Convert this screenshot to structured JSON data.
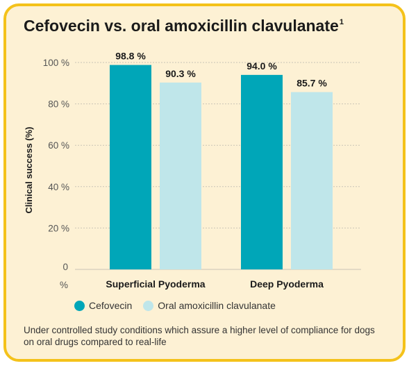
{
  "title": "Cefovecin vs. oral amoxicillin clavulanate",
  "title_superscript": "1",
  "footnote": "Under controlled study conditions which assure a higher level of compliance for dogs on oral drugs compared to real-life",
  "chart_data": {
    "type": "bar",
    "title": "Cefovecin vs. oral amoxicillin clavulanate",
    "ylabel": "Clinical success (%)",
    "xlabel": "",
    "ylim": [
      0,
      100
    ],
    "yticks": [
      "0 %",
      "20 %",
      "40 %",
      "60 %",
      "80 %",
      "100 %"
    ],
    "grid": "dashed horizontal",
    "legend_position": "bottom",
    "categories": [
      "Superficial Pyoderma",
      "Deep Pyoderma"
    ],
    "series": [
      {
        "name": "Cefovecin",
        "values": [
          98.8,
          94.0
        ],
        "labels": [
          "98.8 %",
          "94.0 %"
        ],
        "color": "#00a6b8"
      },
      {
        "name": "Oral amoxicillin clavulanate",
        "values": [
          90.3,
          85.7
        ],
        "labels": [
          "90.3 %",
          "85.7 %"
        ],
        "color": "#bfe6ea"
      }
    ]
  },
  "colors": {
    "border": "#f4c21b",
    "background": "#fdf1d4"
  }
}
